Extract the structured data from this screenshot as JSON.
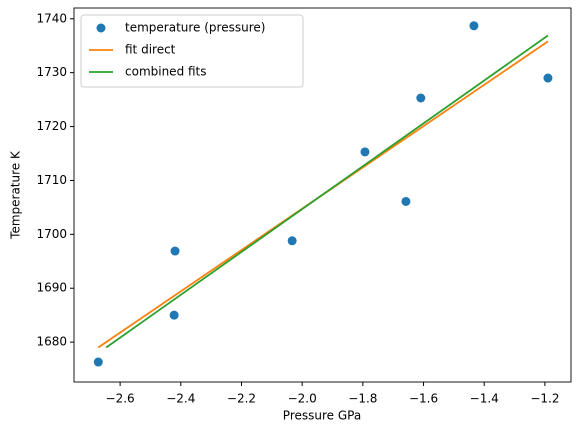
{
  "chart_data": {
    "type": "scatter",
    "xlabel": "Pressure GPa",
    "ylabel": "Temperature K",
    "xlim": [
      -2.752,
      -1.114
    ],
    "ylim": [
      1672.6,
      1742.0
    ],
    "xticks": [
      {
        "value": -2.6,
        "label": "−2.6"
      },
      {
        "value": -2.4,
        "label": "−2.4"
      },
      {
        "value": -2.2,
        "label": "−2.2"
      },
      {
        "value": -2.0,
        "label": "−2.0"
      },
      {
        "value": -1.8,
        "label": "−1.8"
      },
      {
        "value": -1.6,
        "label": "−1.6"
      },
      {
        "value": -1.4,
        "label": "−1.4"
      },
      {
        "value": -1.2,
        "label": "−1.2"
      }
    ],
    "yticks": [
      1680,
      1690,
      1700,
      1710,
      1720,
      1730,
      1740
    ],
    "legend": "upper left",
    "series": [
      {
        "name": "temperature (pressure)",
        "type": "scatter",
        "color": "#1f77b4",
        "x": [
          -2.672,
          -2.419,
          -2.422,
          -2.033,
          -1.793,
          -1.658,
          -1.609,
          -1.434,
          -1.19
        ],
        "values": [
          1676.3,
          1696.9,
          1685.0,
          1698.8,
          1715.3,
          1706.1,
          1725.3,
          1738.7,
          1729.0
        ]
      },
      {
        "name": "fit direct",
        "type": "line",
        "color": "#ff7f0e",
        "x": [
          -2.672,
          -1.19
        ],
        "values": [
          1679.0,
          1735.8
        ]
      },
      {
        "name": "combined fits",
        "type": "line",
        "color": "#2ca02c",
        "x": [
          -2.646,
          -1.19
        ],
        "values": [
          1679.0,
          1736.9
        ]
      }
    ]
  }
}
